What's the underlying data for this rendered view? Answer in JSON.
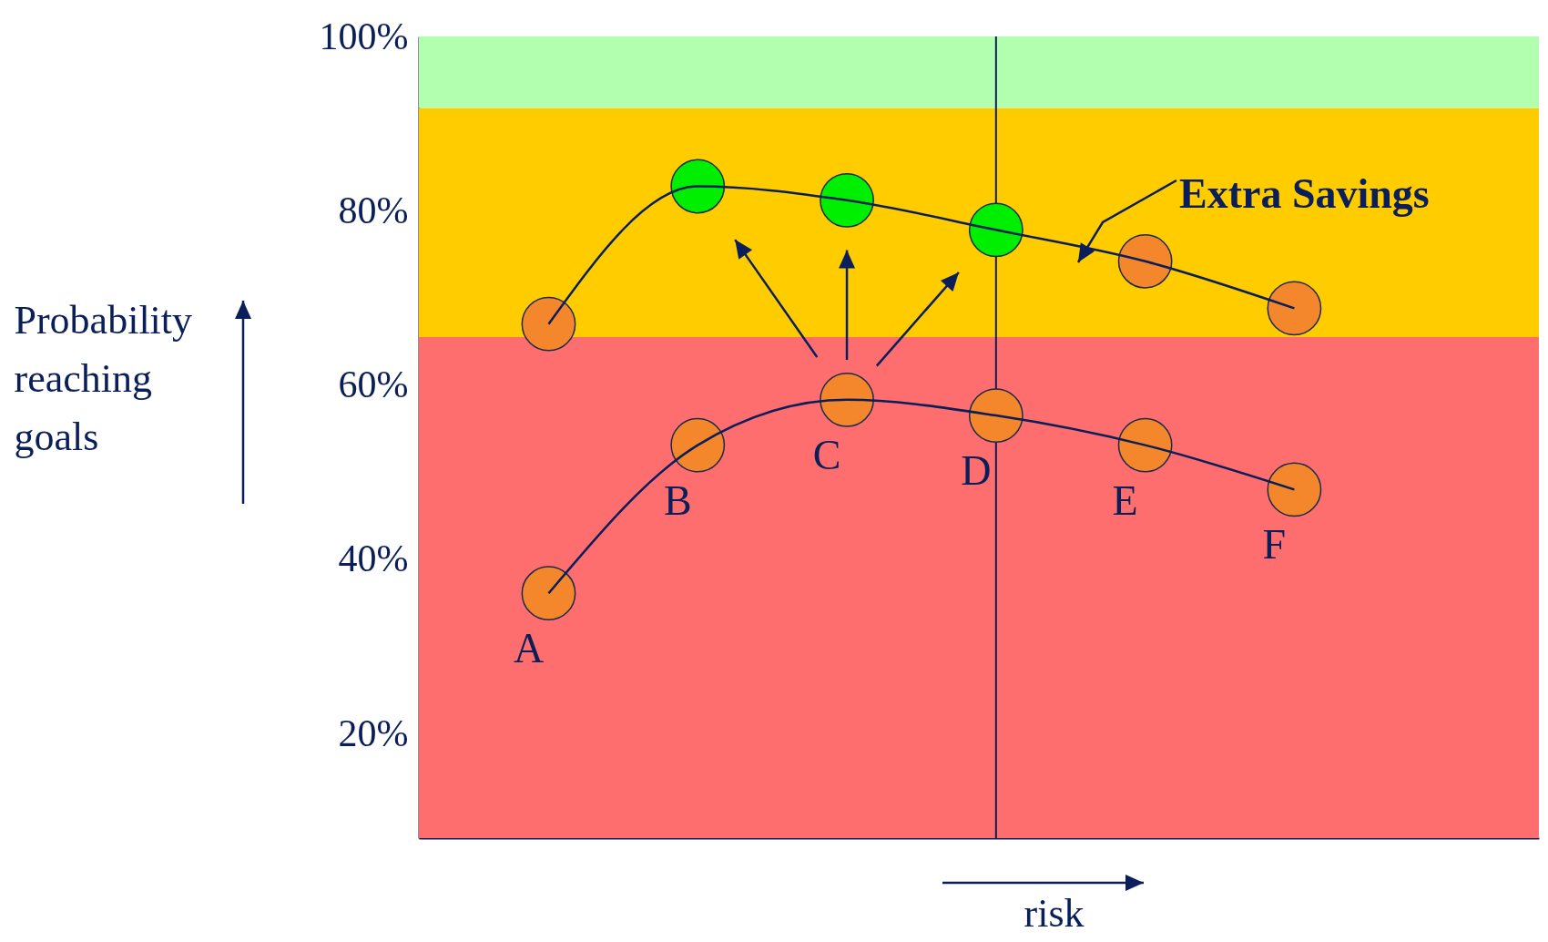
{
  "chart_data": {
    "type": "line",
    "categories": [
      "A",
      "B",
      "C",
      "D",
      "E",
      "F"
    ],
    "xlabel": "risk",
    "ylabel": "Probability reaching goals",
    "ylim": [
      8,
      100
    ],
    "yticks": [
      {
        "value": 20,
        "label": "20%"
      },
      {
        "value": 40,
        "label": "40%"
      },
      {
        "value": 60,
        "label": "60%"
      },
      {
        "value": 80,
        "label": "80%"
      },
      {
        "value": 100,
        "label": "100%"
      }
    ],
    "tick_labels": "y",
    "series": [
      {
        "type": "scatter",
        "colors": [
          "#f4862c",
          "#f4862c",
          "#f4862c",
          "#f4862c",
          "#f4862c",
          "#f4862c"
        ],
        "values": [
          36.1,
          53.1,
          58.3,
          56.5,
          53.1,
          48.0
        ]
      },
      {
        "type": "scatter",
        "colors": [
          "#f4862c",
          "#00ee00",
          "#00ee00",
          "#00ee00",
          "#f4862c",
          "#f4862c"
        ],
        "values": [
          67.0,
          82.8,
          81.2,
          77.8,
          74.2,
          68.8
        ]
      },
      {
        "color": "#0a1e5a",
        "values": [
          36.1,
          53.1,
          58.3,
          56.5,
          53.1,
          48.0
        ]
      },
      {
        "color": "#0a1e5a",
        "values": [
          67.0,
          82.8,
          81.2,
          77.8,
          74.2,
          68.8
        ]
      }
    ],
    "bands": [
      {
        "axis": "y",
        "from": 8,
        "to": 65.5,
        "color": "#ff6e6e"
      },
      {
        "axis": "y",
        "from": 65.5,
        "to": 91.8,
        "color": "#ffcc00"
      },
      {
        "axis": "y",
        "from": 91.8,
        "to": 100,
        "color": "#b3ffb0"
      }
    ],
    "ref_lines": [
      {
        "axis": "x",
        "value": "D",
        "color": "#0a1e5a"
      }
    ],
    "annotations": [
      "Extra Savings"
    ]
  }
}
